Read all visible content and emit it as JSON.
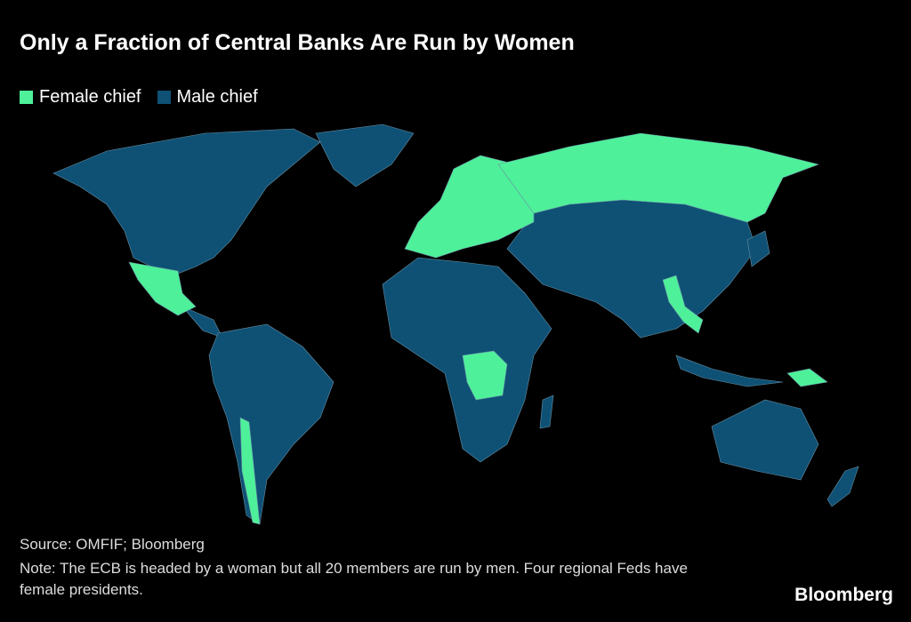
{
  "header": {
    "title": "Only a Fraction of Central Banks Are Run by Women"
  },
  "legend": [
    {
      "label": "Female chief",
      "color": "#4ef09a"
    },
    {
      "label": "Male chief",
      "color": "#0e5175"
    }
  ],
  "footer": {
    "source": "Source: OMFIF; Bloomberg",
    "note": "Note: The ECB is headed by a woman but all 20 members are run by men. Four regional Feds have female presidents.",
    "logo": "Bloomberg"
  }
}
